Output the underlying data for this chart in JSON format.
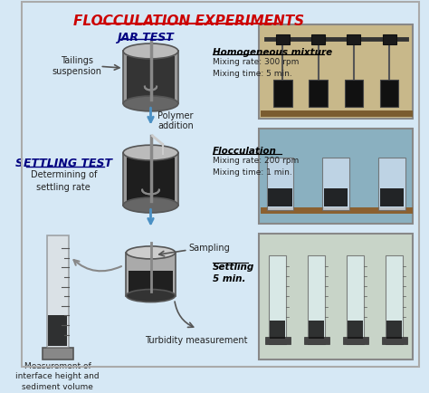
{
  "title": "FLOCCULATION EXPERIMENTS",
  "bg_color": "#d6e8f5",
  "title_color": "#cc0000",
  "jar_test_label": "JAR TEST",
  "settling_test_label": "SETTLING TEST",
  "tailings_label": "Tailings\nsuspension",
  "homo_label": "Homogeneous mixture",
  "homo_sub": "Mixing rate: 300 rpm\nMixing time: 5 min.",
  "polymer_label": "Polymer\naddition",
  "settling_rate_label": "Determining of\nsettling rate",
  "floc_label": "Flocculation",
  "floc_sub": "Mixing rate: 200 rpm\nMixing time: 1 min.",
  "sampling_label": "Sampling",
  "settling_label": "Settling\n5 min.",
  "turbidity_label": "Turbidity measurement",
  "measure_label": "Measurement of\ninterface height and\nsediment volume",
  "arrow_color": "#4a90c4",
  "text_color": "#222222"
}
